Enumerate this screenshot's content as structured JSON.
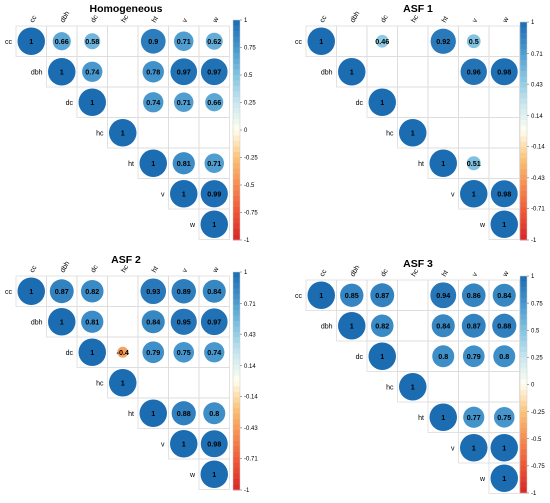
{
  "chart_data": [
    {
      "type": "heatmap",
      "title": "Homogeneous",
      "variables": [
        "cc",
        "dbh",
        "dc",
        "hc",
        "ht",
        "v",
        "w"
      ],
      "cells": [
        {
          "row": "cc",
          "col": "cc",
          "value": 1,
          "label": "1"
        },
        {
          "row": "cc",
          "col": "dbh",
          "value": 0.66,
          "label": "0.66"
        },
        {
          "row": "cc",
          "col": "dc",
          "value": 0.58,
          "label": "0.58"
        },
        {
          "row": "cc",
          "col": "ht",
          "value": 0.9,
          "label": "0.9"
        },
        {
          "row": "cc",
          "col": "v",
          "value": 0.71,
          "label": "0.71"
        },
        {
          "row": "cc",
          "col": "w",
          "value": 0.62,
          "label": "0.62"
        },
        {
          "row": "dbh",
          "col": "dbh",
          "value": 1,
          "label": "1"
        },
        {
          "row": "dbh",
          "col": "dc",
          "value": 0.74,
          "label": "0.74"
        },
        {
          "row": "dbh",
          "col": "ht",
          "value": 0.78,
          "label": "0.78"
        },
        {
          "row": "dbh",
          "col": "v",
          "value": 0.97,
          "label": "0.97"
        },
        {
          "row": "dbh",
          "col": "w",
          "value": 0.97,
          "label": "0.97"
        },
        {
          "row": "dc",
          "col": "dc",
          "value": 1,
          "label": "1"
        },
        {
          "row": "dc",
          "col": "ht",
          "value": 0.74,
          "label": "0.74"
        },
        {
          "row": "dc",
          "col": "v",
          "value": 0.71,
          "label": "0.71"
        },
        {
          "row": "dc",
          "col": "w",
          "value": 0.66,
          "label": "0.66"
        },
        {
          "row": "hc",
          "col": "hc",
          "value": 1,
          "label": "1"
        },
        {
          "row": "ht",
          "col": "ht",
          "value": 1,
          "label": "1"
        },
        {
          "row": "ht",
          "col": "v",
          "value": 0.81,
          "label": "0.81"
        },
        {
          "row": "ht",
          "col": "w",
          "value": 0.71,
          "label": "0.71"
        },
        {
          "row": "v",
          "col": "v",
          "value": 1,
          "label": "1"
        },
        {
          "row": "v",
          "col": "w",
          "value": 0.99,
          "label": "0.99"
        },
        {
          "row": "w",
          "col": "w",
          "value": 1,
          "label": "1"
        }
      ],
      "legend": {
        "ticks": [
          "1",
          "0.75",
          "0.5",
          "0.25",
          "0",
          "-0.25",
          "-0.5",
          "-0.75",
          "-1"
        ],
        "range": [
          -1,
          1
        ],
        "placement": "right"
      }
    },
    {
      "type": "heatmap",
      "title": "ASF 1",
      "variables": [
        "cc",
        "dbh",
        "dc",
        "hc",
        "ht",
        "v",
        "w"
      ],
      "cells": [
        {
          "row": "cc",
          "col": "cc",
          "value": 1,
          "label": "1"
        },
        {
          "row": "cc",
          "col": "dc",
          "value": 0.46,
          "label": "0.46"
        },
        {
          "row": "cc",
          "col": "ht",
          "value": 0.92,
          "label": "0.92"
        },
        {
          "row": "cc",
          "col": "v",
          "value": 0.5,
          "label": "0.5"
        },
        {
          "row": "dbh",
          "col": "dbh",
          "value": 1,
          "label": "1"
        },
        {
          "row": "dbh",
          "col": "v",
          "value": 0.96,
          "label": "0.96"
        },
        {
          "row": "dbh",
          "col": "w",
          "value": 0.98,
          "label": "0.98"
        },
        {
          "row": "dc",
          "col": "dc",
          "value": 1,
          "label": "1"
        },
        {
          "row": "hc",
          "col": "hc",
          "value": 1,
          "label": "1"
        },
        {
          "row": "ht",
          "col": "ht",
          "value": 1,
          "label": "1"
        },
        {
          "row": "ht",
          "col": "v",
          "value": 0.51,
          "label": "0.51"
        },
        {
          "row": "v",
          "col": "v",
          "value": 1,
          "label": "1"
        },
        {
          "row": "v",
          "col": "w",
          "value": 0.98,
          "label": "0.98"
        },
        {
          "row": "w",
          "col": "w",
          "value": 1,
          "label": "1"
        }
      ],
      "legend": {
        "ticks": [
          "1",
          "0.71",
          "0.43",
          "0.14",
          "-0.14",
          "-0.43",
          "-0.71",
          "-1"
        ],
        "range": [
          -1,
          1
        ],
        "placement": "right"
      }
    },
    {
      "type": "heatmap",
      "title": "ASF 2",
      "variables": [
        "cc",
        "dbh",
        "dc",
        "hc",
        "ht",
        "v",
        "w"
      ],
      "cells": [
        {
          "row": "cc",
          "col": "cc",
          "value": 1,
          "label": "1"
        },
        {
          "row": "cc",
          "col": "dbh",
          "value": 0.87,
          "label": "0.87"
        },
        {
          "row": "cc",
          "col": "dc",
          "value": 0.82,
          "label": "0.82"
        },
        {
          "row": "cc",
          "col": "ht",
          "value": 0.93,
          "label": "0.93"
        },
        {
          "row": "cc",
          "col": "v",
          "value": 0.89,
          "label": "0.89"
        },
        {
          "row": "cc",
          "col": "w",
          "value": 0.84,
          "label": "0.84"
        },
        {
          "row": "dbh",
          "col": "dbh",
          "value": 1,
          "label": "1"
        },
        {
          "row": "dbh",
          "col": "dc",
          "value": 0.81,
          "label": "0.81"
        },
        {
          "row": "dbh",
          "col": "ht",
          "value": 0.84,
          "label": "0.84"
        },
        {
          "row": "dbh",
          "col": "v",
          "value": 0.95,
          "label": "0.95"
        },
        {
          "row": "dbh",
          "col": "w",
          "value": 0.97,
          "label": "0.97"
        },
        {
          "row": "dc",
          "col": "dc",
          "value": 1,
          "label": "1"
        },
        {
          "row": "dc",
          "col": "hc",
          "value": -0.4,
          "label": "-0.4"
        },
        {
          "row": "dc",
          "col": "ht",
          "value": 0.79,
          "label": "0.79"
        },
        {
          "row": "dc",
          "col": "v",
          "value": 0.75,
          "label": "0.75"
        },
        {
          "row": "dc",
          "col": "w",
          "value": 0.74,
          "label": "0.74"
        },
        {
          "row": "hc",
          "col": "hc",
          "value": 1,
          "label": "1"
        },
        {
          "row": "ht",
          "col": "ht",
          "value": 1,
          "label": "1"
        },
        {
          "row": "ht",
          "col": "v",
          "value": 0.88,
          "label": "0.88"
        },
        {
          "row": "ht",
          "col": "w",
          "value": 0.8,
          "label": "0.8"
        },
        {
          "row": "v",
          "col": "v",
          "value": 1,
          "label": "1"
        },
        {
          "row": "v",
          "col": "w",
          "value": 0.98,
          "label": "0.98"
        },
        {
          "row": "w",
          "col": "w",
          "value": 1,
          "label": "1"
        }
      ],
      "legend": {
        "ticks": [
          "1",
          "0.71",
          "0.43",
          "0.14",
          "-0.14",
          "-0.43",
          "-0.71",
          "-1"
        ],
        "range": [
          -1,
          1
        ],
        "placement": "right"
      }
    },
    {
      "type": "heatmap",
      "title": "ASF 3",
      "variables": [
        "cc",
        "dbh",
        "dc",
        "hc",
        "ht",
        "v",
        "w"
      ],
      "cells": [
        {
          "row": "cc",
          "col": "cc",
          "value": 1,
          "label": "1"
        },
        {
          "row": "cc",
          "col": "dbh",
          "value": 0.85,
          "label": "0.85"
        },
        {
          "row": "cc",
          "col": "dc",
          "value": 0.87,
          "label": "0.87"
        },
        {
          "row": "cc",
          "col": "ht",
          "value": 0.94,
          "label": "0.94"
        },
        {
          "row": "cc",
          "col": "v",
          "value": 0.86,
          "label": "0.86"
        },
        {
          "row": "cc",
          "col": "w",
          "value": 0.84,
          "label": "0.84"
        },
        {
          "row": "dbh",
          "col": "dbh",
          "value": 1,
          "label": "1"
        },
        {
          "row": "dbh",
          "col": "dc",
          "value": 0.82,
          "label": "0.82"
        },
        {
          "row": "dbh",
          "col": "ht",
          "value": 0.84,
          "label": "0.84"
        },
        {
          "row": "dbh",
          "col": "v",
          "value": 0.87,
          "label": "0.87"
        },
        {
          "row": "dbh",
          "col": "w",
          "value": 0.88,
          "label": "0.88"
        },
        {
          "row": "dc",
          "col": "dc",
          "value": 1,
          "label": "1"
        },
        {
          "row": "dc",
          "col": "ht",
          "value": 0.8,
          "label": "0.8"
        },
        {
          "row": "dc",
          "col": "v",
          "value": 0.79,
          "label": "0.79"
        },
        {
          "row": "dc",
          "col": "w",
          "value": 0.8,
          "label": "0.8"
        },
        {
          "row": "hc",
          "col": "hc",
          "value": 1,
          "label": "1"
        },
        {
          "row": "ht",
          "col": "ht",
          "value": 1,
          "label": "1"
        },
        {
          "row": "ht",
          "col": "v",
          "value": 0.77,
          "label": "0.77"
        },
        {
          "row": "ht",
          "col": "w",
          "value": 0.75,
          "label": "0.75"
        },
        {
          "row": "v",
          "col": "v",
          "value": 1,
          "label": "1"
        },
        {
          "row": "v",
          "col": "w",
          "value": 1,
          "label": "1"
        },
        {
          "row": "w",
          "col": "w",
          "value": 1,
          "label": "1"
        }
      ],
      "legend": {
        "ticks": [
          "1",
          "0.75",
          "0.5",
          "0.25",
          "0",
          "-0.25",
          "-0.5",
          "-0.75",
          "-1"
        ],
        "range": [
          -1,
          1
        ],
        "placement": "right"
      }
    }
  ],
  "colors": {
    "scale": [
      "#d7191c",
      "#f46d43",
      "#fdae61",
      "#fee090",
      "#ffffff",
      "#e0f3f8",
      "#abd9e9",
      "#74add1",
      "#2c7bb6",
      "#1f6fb4"
    ],
    "grid": "#dcdcdc",
    "text": "#000000"
  }
}
